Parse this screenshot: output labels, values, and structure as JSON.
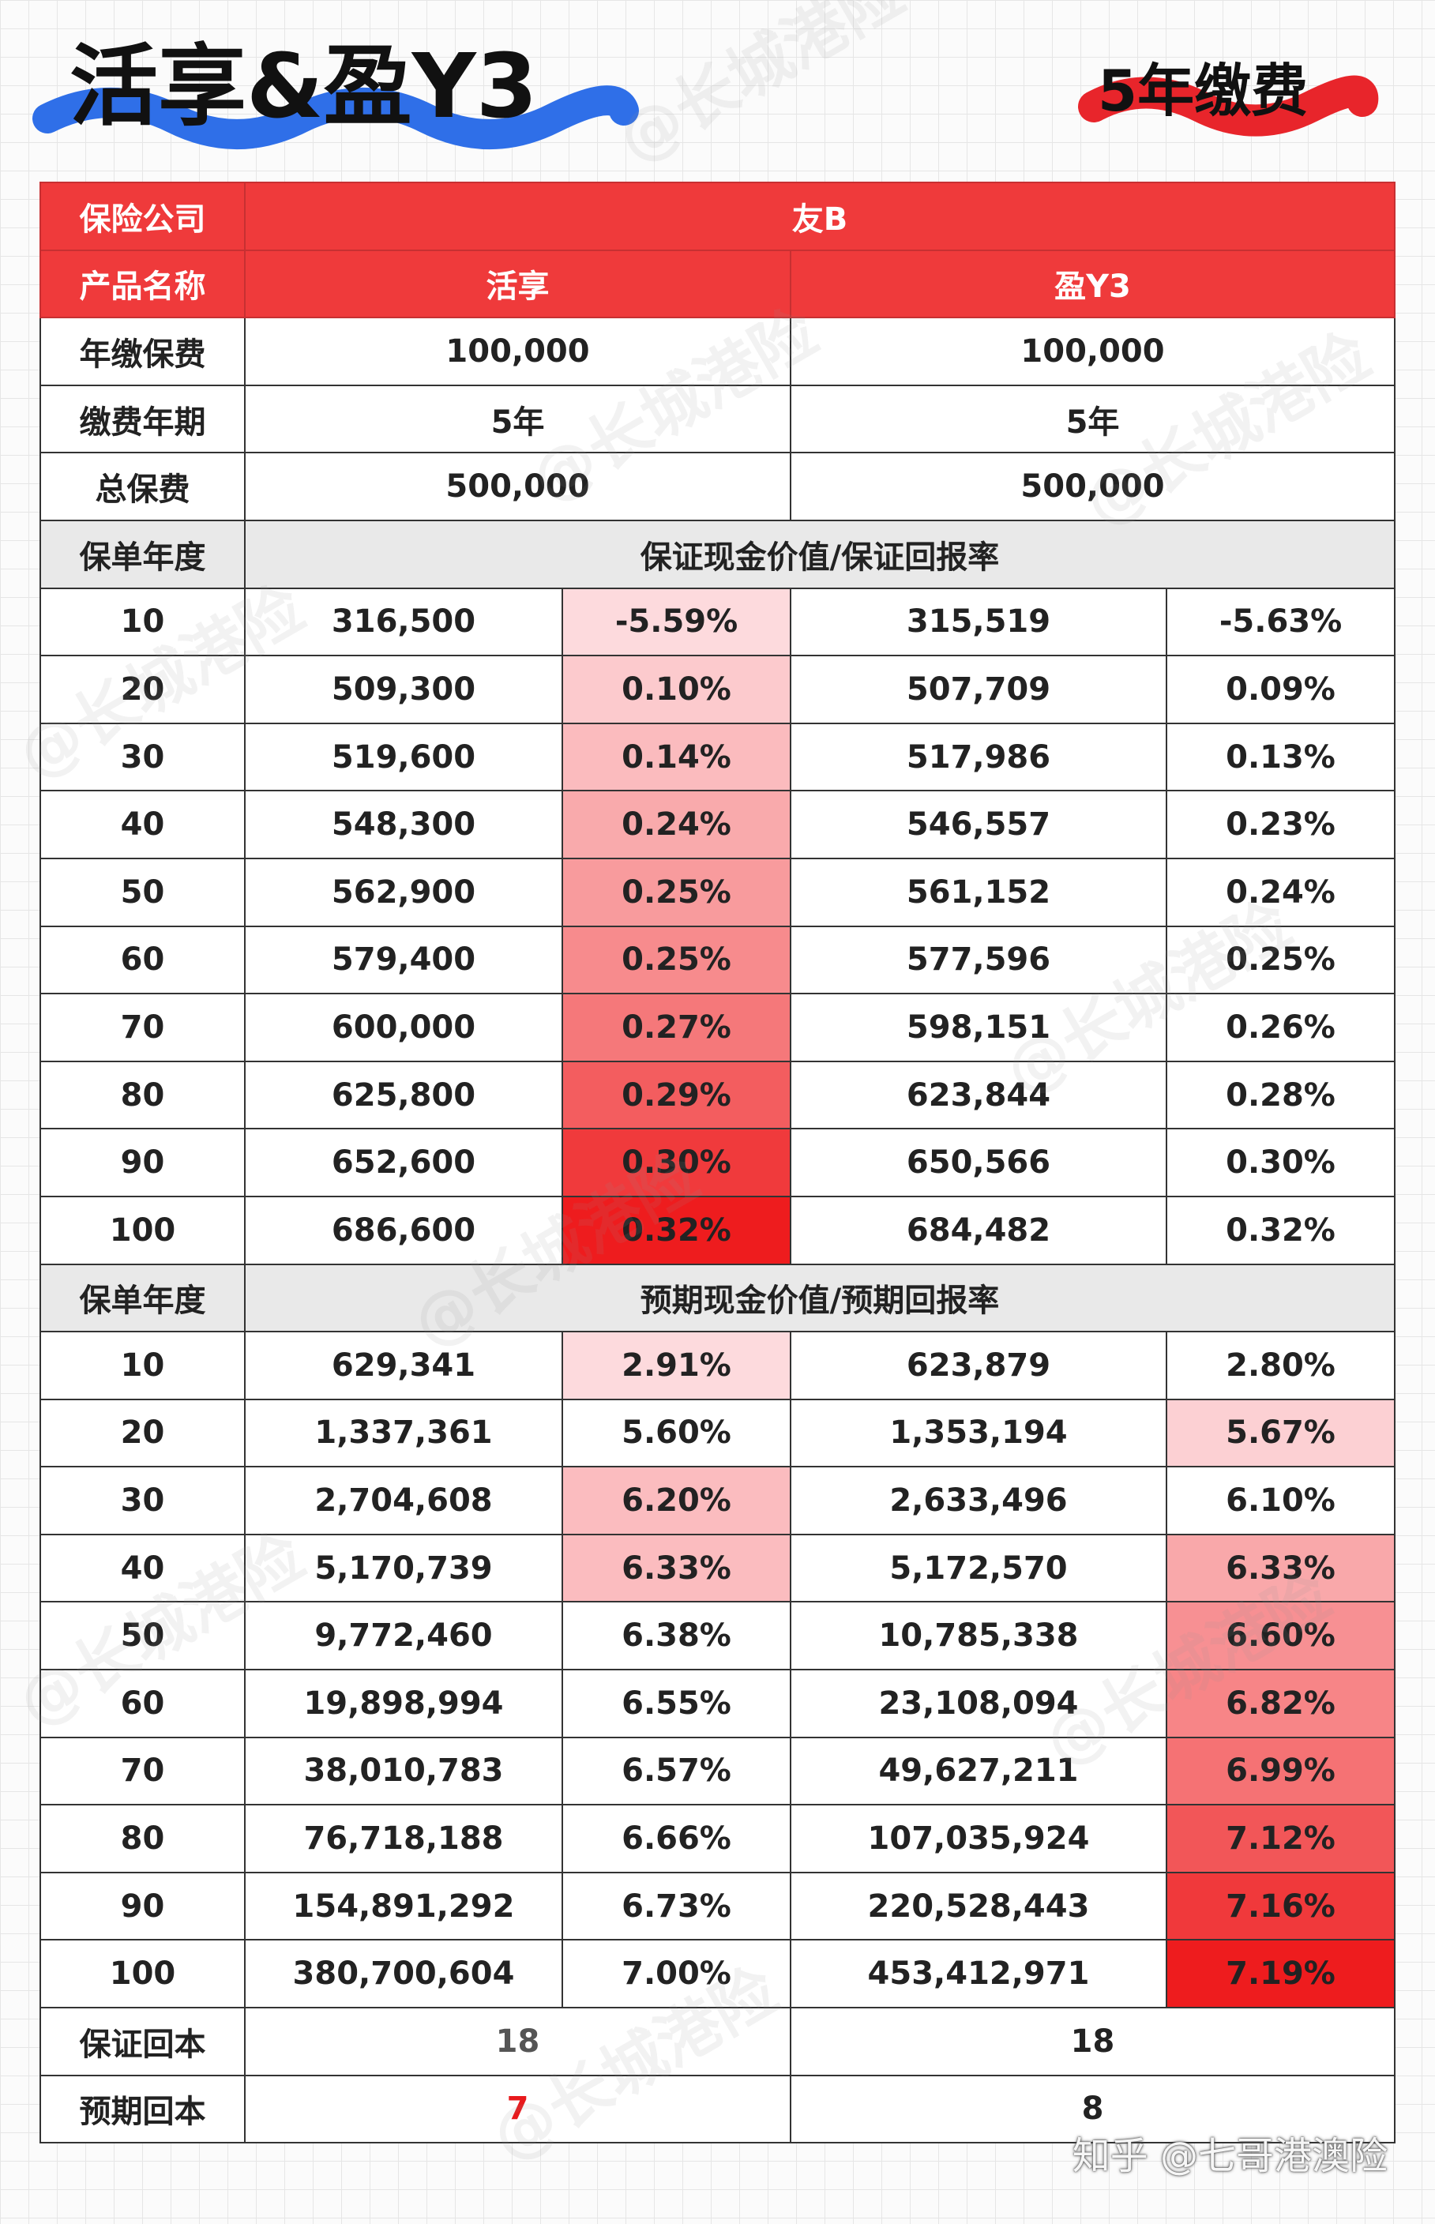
{
  "header": {
    "title": "活享&盈Y3",
    "badge": "5年缴费"
  },
  "table": {
    "company_label": "保险公司",
    "company": "友B",
    "product_label": "产品名称",
    "products": [
      "活享",
      "盈Y3"
    ],
    "info": [
      {
        "label": "年缴保费",
        "values": [
          "100,000",
          "100,000"
        ]
      },
      {
        "label": "缴费年期",
        "values": [
          "5年",
          "5年"
        ]
      },
      {
        "label": "总保费",
        "values": [
          "500,000",
          "500,000"
        ]
      }
    ],
    "sections": [
      {
        "label": "保单年度",
        "title": "保证现金价值/保证回报率",
        "rows": [
          {
            "year": "10",
            "cells": [
              {
                "text": "316,500"
              },
              {
                "text": "-5.59%",
                "bg": "#fddadd"
              },
              {
                "text": "315,519"
              },
              {
                "text": "-5.63%"
              }
            ]
          },
          {
            "year": "20",
            "cells": [
              {
                "text": "509,300"
              },
              {
                "text": "0.10%",
                "bg": "#fccacd"
              },
              {
                "text": "507,709"
              },
              {
                "text": "0.09%"
              }
            ]
          },
          {
            "year": "30",
            "cells": [
              {
                "text": "519,600"
              },
              {
                "text": "0.14%",
                "bg": "#fbbbbe"
              },
              {
                "text": "517,986"
              },
              {
                "text": "0.13%"
              }
            ]
          },
          {
            "year": "40",
            "cells": [
              {
                "text": "548,300"
              },
              {
                "text": "0.24%",
                "bg": "#f9aaac"
              },
              {
                "text": "546,557"
              },
              {
                "text": "0.23%"
              }
            ]
          },
          {
            "year": "50",
            "cells": [
              {
                "text": "562,900"
              },
              {
                "text": "0.25%",
                "bg": "#f89b9d"
              },
              {
                "text": "561,152"
              },
              {
                "text": "0.24%"
              }
            ]
          },
          {
            "year": "60",
            "cells": [
              {
                "text": "579,400"
              },
              {
                "text": "0.25%",
                "bg": "#f78b8d"
              },
              {
                "text": "577,596"
              },
              {
                "text": "0.25%"
              }
            ]
          },
          {
            "year": "70",
            "cells": [
              {
                "text": "600,000"
              },
              {
                "text": "0.27%",
                "bg": "#f5787a"
              },
              {
                "text": "598,151"
              },
              {
                "text": "0.26%"
              }
            ]
          },
          {
            "year": "80",
            "cells": [
              {
                "text": "625,800"
              },
              {
                "text": "0.29%",
                "bg": "#f35d5f"
              },
              {
                "text": "623,844"
              },
              {
                "text": "0.28%"
              }
            ]
          },
          {
            "year": "90",
            "cells": [
              {
                "text": "652,600"
              },
              {
                "text": "0.30%",
                "bg": "#f03a3c"
              },
              {
                "text": "650,566"
              },
              {
                "text": "0.30%"
              }
            ]
          },
          {
            "year": "100",
            "cells": [
              {
                "text": "686,600"
              },
              {
                "text": "0.32%",
                "bg": "#ee1c1e"
              },
              {
                "text": "684,482"
              },
              {
                "text": "0.32%"
              }
            ]
          }
        ]
      },
      {
        "label": "保单年度",
        "title": "预期现金价值/预期回报率",
        "rows": [
          {
            "year": "10",
            "cells": [
              {
                "text": "629,341"
              },
              {
                "text": "2.91%",
                "bg": "#fddadd"
              },
              {
                "text": "623,879"
              },
              {
                "text": "2.80%"
              }
            ]
          },
          {
            "year": "20",
            "cells": [
              {
                "text": "1,337,361"
              },
              {
                "text": "5.60%"
              },
              {
                "text": "1,353,194"
              },
              {
                "text": "5.67%",
                "bg": "#fcd0d3"
              }
            ]
          },
          {
            "year": "30",
            "cells": [
              {
                "text": "2,704,608"
              },
              {
                "text": "6.20%",
                "bg": "#fbbcbf"
              },
              {
                "text": "2,633,496"
              },
              {
                "text": "6.10%"
              }
            ]
          },
          {
            "year": "40",
            "cells": [
              {
                "text": "5,170,739"
              },
              {
                "text": "6.33%",
                "bg": "#fbbcbf"
              },
              {
                "text": "5,172,570"
              },
              {
                "text": "6.33%",
                "bg": "#f9a8aa"
              }
            ]
          },
          {
            "year": "50",
            "cells": [
              {
                "text": "9,772,460"
              },
              {
                "text": "6.38%"
              },
              {
                "text": "10,785,338"
              },
              {
                "text": "6.60%",
                "bg": "#f79093"
              }
            ]
          },
          {
            "year": "60",
            "cells": [
              {
                "text": "19,898,994"
              },
              {
                "text": "6.55%"
              },
              {
                "text": "23,108,094"
              },
              {
                "text": "6.82%",
                "bg": "#f78587"
              }
            ]
          },
          {
            "year": "70",
            "cells": [
              {
                "text": "38,010,783"
              },
              {
                "text": "6.57%"
              },
              {
                "text": "49,627,211"
              },
              {
                "text": "6.99%",
                "bg": "#f57274"
              }
            ]
          },
          {
            "year": "80",
            "cells": [
              {
                "text": "76,718,188"
              },
              {
                "text": "6.66%"
              },
              {
                "text": "107,035,924"
              },
              {
                "text": "7.12%",
                "bg": "#f25658"
              }
            ]
          },
          {
            "year": "90",
            "cells": [
              {
                "text": "154,891,292"
              },
              {
                "text": "6.73%"
              },
              {
                "text": "220,528,443"
              },
              {
                "text": "7.16%",
                "bg": "#f0393b"
              }
            ]
          },
          {
            "year": "100",
            "cells": [
              {
                "text": "380,700,604"
              },
              {
                "text": "7.00%"
              },
              {
                "text": "453,412,971"
              },
              {
                "text": "7.19%",
                "bg": "#ee1c1e"
              }
            ]
          }
        ]
      }
    ],
    "footer": [
      {
        "label": "保证回本",
        "values": [
          "18",
          "18"
        ],
        "colors": [
          "#555555",
          "#222222"
        ]
      },
      {
        "label": "预期回本",
        "values": [
          "7",
          "8"
        ],
        "colors": [
          "#e8191c",
          "#222222"
        ]
      }
    ]
  },
  "watermark": "@长城港险",
  "credit": "知乎 @七哥港澳险"
}
